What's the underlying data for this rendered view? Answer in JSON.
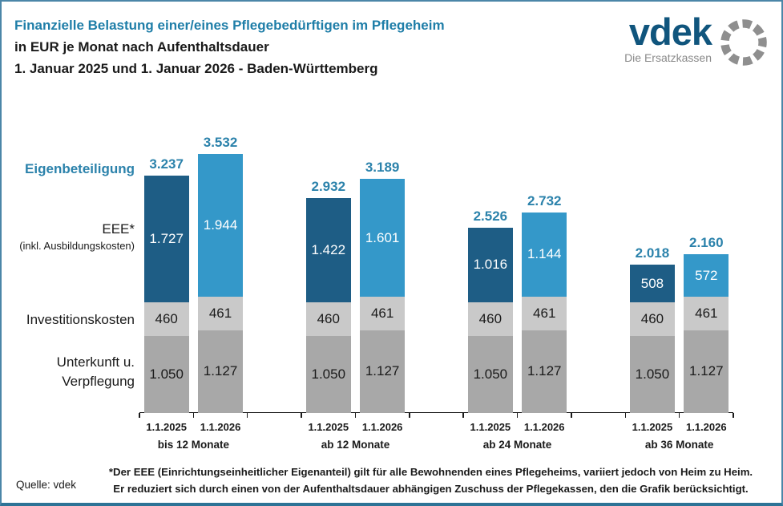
{
  "header": {
    "line1": "Finanzielle Belastung einer/eines Pflegebedürftigen im Pflegeheim",
    "line2": "in EUR je Monat nach Aufenthaltsdauer",
    "line3": "1. Januar 2025 und 1. Januar 2026 - Baden-Württemberg"
  },
  "logo": {
    "brand": "vdek",
    "tagline": "Die Ersatzkassen",
    "brand_color": "#10557d",
    "ring_color": "#8f8f8f"
  },
  "side_labels": {
    "eigenbeteiligung": "Eigenbeteiligung",
    "eee_line1": "EEE*",
    "eee_line2": "(inkl. Ausbildungskosten)",
    "investitionskosten": "Investitionskosten",
    "unterkunft_line1": "Unterkunft u.",
    "unterkunft_line2": "Verpflegung"
  },
  "chart_data": {
    "type": "bar",
    "stacked": true,
    "title": "Finanzielle Belastung einer/eines Pflegebedürftigen im Pflegeheim",
    "subtitle": "in EUR je Monat nach Aufenthaltsdauer",
    "period": "1. Januar 2025 und 1. Januar 2026 - Baden-Württemberg",
    "unit": "EUR je Monat",
    "ylim": [
      0,
      3600
    ],
    "grid": false,
    "legend_position": "left-row-labels",
    "total_name": "Eigenbeteiligung",
    "segment_names_bottom_to_top": [
      "Unterkunft u. Verpflegung",
      "Investitionskosten",
      "EEE* (inkl. Ausbildungskosten)"
    ],
    "bar_series_labels": [
      "1.1.2025",
      "1.1.2026"
    ],
    "colors": {
      "eee_2025": "#1e5d85",
      "eee_2026": "#3498c9",
      "investitionskosten": "#c9c9c9",
      "unterkunft": "#a8a8a8",
      "total_label": "#2b82ab",
      "segment_text_on_gray": "#1a1a1a",
      "segment_text_on_blue": "#ffffff",
      "axis": "#1a1a1a"
    },
    "groups": [
      {
        "label": "bis 12 Monate",
        "bars": [
          {
            "label": "1.1.2025",
            "unterkunft_verpflegung": 1050,
            "investitionskosten": 460,
            "eee": 1727,
            "eigenbeteiligung_total": 3237
          },
          {
            "label": "1.1.2026",
            "unterkunft_verpflegung": 1127,
            "investitionskosten": 461,
            "eee": 1944,
            "eigenbeteiligung_total": 3532
          }
        ]
      },
      {
        "label": "ab 12 Monate",
        "bars": [
          {
            "label": "1.1.2025",
            "unterkunft_verpflegung": 1050,
            "investitionskosten": 460,
            "eee": 1422,
            "eigenbeteiligung_total": 2932
          },
          {
            "label": "1.1.2026",
            "unterkunft_verpflegung": 1127,
            "investitionskosten": 461,
            "eee": 1601,
            "eigenbeteiligung_total": 3189
          }
        ]
      },
      {
        "label": "ab 24 Monate",
        "bars": [
          {
            "label": "1.1.2025",
            "unterkunft_verpflegung": 1050,
            "investitionskosten": 460,
            "eee": 1016,
            "eigenbeteiligung_total": 2526
          },
          {
            "label": "1.1.2026",
            "unterkunft_verpflegung": 1127,
            "investitionskosten": 461,
            "eee": 1144,
            "eigenbeteiligung_total": 2732
          }
        ]
      },
      {
        "label": "ab 36 Monate",
        "bars": [
          {
            "label": "1.1.2025",
            "unterkunft_verpflegung": 1050,
            "investitionskosten": 460,
            "eee": 508,
            "eigenbeteiligung_total": 2018
          },
          {
            "label": "1.1.2026",
            "unterkunft_verpflegung": 1127,
            "investitionskosten": 461,
            "eee": 572,
            "eigenbeteiligung_total": 2160
          }
        ]
      }
    ]
  },
  "footer": {
    "source": "Quelle: vdek",
    "footnote_line1": "*Der EEE (Einrichtungseinheitlicher Eigenanteil) gilt für alle Bewohnenden eines Pflegeheims, variiert jedoch von Heim zu Heim.",
    "footnote_line2": "Er reduziert sich durch einen von der Aufenthaltsdauer abhängigen Zuschuss der Pflegekassen, den die Grafik berücksichtigt."
  }
}
